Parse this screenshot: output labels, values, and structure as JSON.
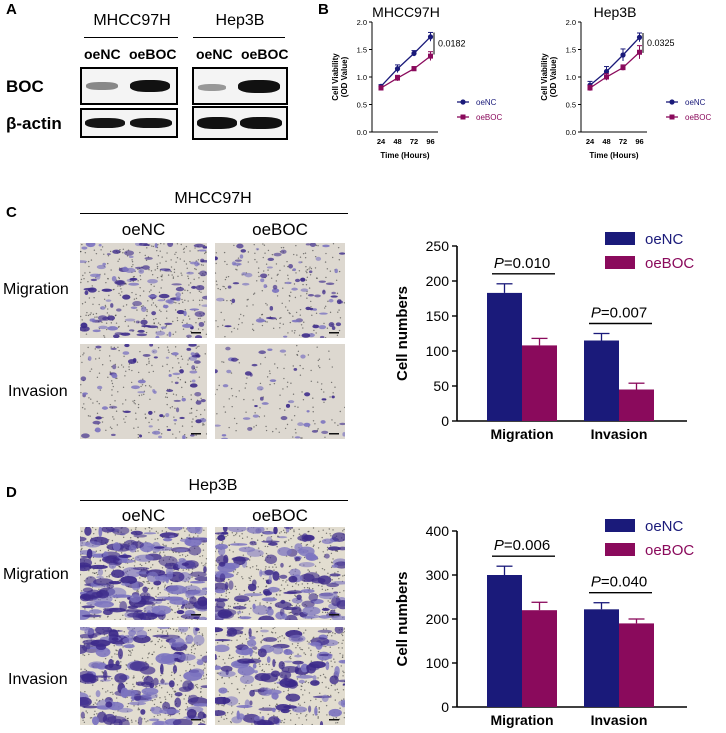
{
  "panel_labels": {
    "a": "A",
    "b": "B",
    "c": "C",
    "d": "D"
  },
  "western_blot": {
    "cell_lines": [
      "MHCC97H",
      "Hep3B"
    ],
    "lanes": [
      "oeNC",
      "oeBOC",
      "oeNC",
      "oeBOC"
    ],
    "rows": [
      "BOC",
      "β-actin"
    ]
  },
  "panel_c": {
    "title": "MHCC97H",
    "columns": [
      "oeNC",
      "oeBOC"
    ],
    "rows": [
      "Migration",
      "Invasion"
    ]
  },
  "panel_d": {
    "title": "Hep3B",
    "columns": [
      "oeNC",
      "oeBOC"
    ],
    "rows": [
      "Migration",
      "Invasion"
    ]
  },
  "colors": {
    "oeNC": "#1a1a7a",
    "oeBOC": "#8a0a5c",
    "stain_light": "#7c74c0",
    "stain_dark": "#3c2a8a"
  },
  "chart_data": [
    {
      "type": "line",
      "title": "MHCC97H",
      "xlabel": "Time (Hours)",
      "ylabel": "Cell Viability (OD Value)",
      "x": [
        24,
        48,
        72,
        96
      ],
      "ylim": [
        0,
        2.0
      ],
      "yticks": [
        "0.0",
        "0.5",
        "1.0",
        "1.5",
        "2.0"
      ],
      "series": [
        {
          "name": "oeNC",
          "values": [
            0.83,
            1.15,
            1.43,
            1.73
          ],
          "errors": [
            0.03,
            0.07,
            0.05,
            0.08
          ]
        },
        {
          "name": "oeBOC",
          "values": [
            0.8,
            0.98,
            1.15,
            1.38
          ],
          "errors": [
            0.04,
            0.05,
            0.04,
            0.08
          ]
        }
      ],
      "annotation": "0.0182",
      "legend": "right"
    },
    {
      "type": "line",
      "title": "Hep3B",
      "xlabel": "Time (Hours)",
      "ylabel": "Cell Viability (OD Value)",
      "x": [
        24,
        48,
        72,
        96
      ],
      "ylim": [
        0,
        2.0
      ],
      "yticks": [
        "0.0",
        "0.5",
        "1.0",
        "1.5",
        "2.0"
      ],
      "series": [
        {
          "name": "oeNC",
          "values": [
            0.85,
            1.1,
            1.4,
            1.72
          ],
          "errors": [
            0.07,
            0.09,
            0.11,
            0.08
          ]
        },
        {
          "name": "oeBOC",
          "values": [
            0.8,
            1.0,
            1.17,
            1.45
          ],
          "errors": [
            0.05,
            0.06,
            0.05,
            0.12
          ]
        }
      ],
      "annotation": "0.0325",
      "legend": "right"
    },
    {
      "type": "bar",
      "ylabel": "Cell numbers",
      "categories": [
        "Migration",
        "Invasion"
      ],
      "ylim": [
        0,
        250
      ],
      "yticks": [
        "0",
        "50",
        "100",
        "150",
        "200",
        "250"
      ],
      "series": [
        {
          "name": "oeNC",
          "values": [
            183,
            115
          ],
          "errors": [
            13,
            10
          ]
        },
        {
          "name": "oeBOC",
          "values": [
            108,
            45
          ],
          "errors": [
            10,
            9
          ]
        }
      ],
      "annotations": [
        {
          "p": "P",
          "value": "=0.010"
        },
        {
          "p": "P",
          "value": "=0.007"
        }
      ],
      "legend": "top-right"
    },
    {
      "type": "bar",
      "ylabel": "Cell numbers",
      "categories": [
        "Migration",
        "Invasion"
      ],
      "ylim": [
        0,
        400
      ],
      "yticks": [
        "0",
        "100",
        "200",
        "300",
        "400"
      ],
      "series": [
        {
          "name": "oeNC",
          "values": [
            300,
            222
          ],
          "errors": [
            20,
            15
          ]
        },
        {
          "name": "oeBOC",
          "values": [
            220,
            190
          ],
          "errors": [
            18,
            10
          ]
        }
      ],
      "annotations": [
        {
          "p": "P",
          "value": "=0.006"
        },
        {
          "p": "P",
          "value": "=0.040"
        }
      ],
      "legend": "top-right"
    }
  ]
}
